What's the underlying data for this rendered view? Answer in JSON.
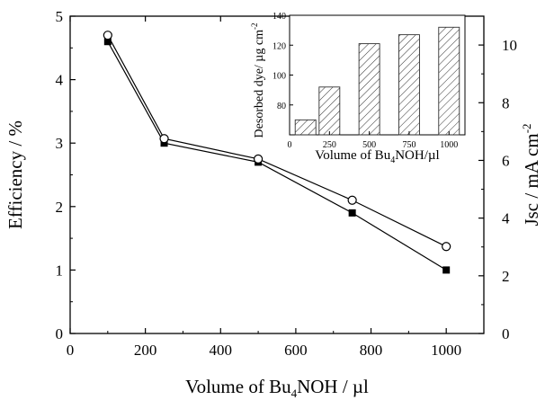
{
  "chart_data": [
    {
      "type": "line",
      "title": "",
      "xlabel": "Volume of Bu4NOH / µl",
      "xlabel_parts": {
        "pre": "Volume of Bu",
        "sub": "4",
        "post": "NOH / µl"
      },
      "ylabel_left": "Efficiency / %",
      "ylabel_right_parts": {
        "pre": "Jsc / mA cm",
        "sup": "-2"
      },
      "xlim": [
        0,
        1100
      ],
      "ylim_left": [
        0,
        5
      ],
      "ylim_right": [
        0,
        11
      ],
      "x_ticks": [
        "0",
        "200",
        "400",
        "600",
        "800",
        "1000"
      ],
      "y_left_ticks": [
        "0",
        "1",
        "2",
        "3",
        "4",
        "5"
      ],
      "y_right_ticks": [
        "0",
        "2",
        "4",
        "6",
        "8",
        "10"
      ],
      "x": [
        100,
        250,
        500,
        750,
        1000
      ],
      "series": [
        {
          "marker": "filled-square",
          "axis": "left",
          "values": [
            4.6,
            3.0,
            2.7,
            1.9,
            1.0
          ]
        },
        {
          "marker": "open-circle",
          "axis": "left",
          "values": [
            4.7,
            3.07,
            2.75,
            2.1,
            1.37
          ]
        }
      ]
    },
    {
      "type": "bar",
      "inset": true,
      "title": "",
      "xlabel_parts": {
        "pre": "Volume of Bu",
        "sub": "4",
        "post": "NOH/µl"
      },
      "ylabel_parts": {
        "pre": "Desorbed dye/ µg cm",
        "sup": "-2"
      },
      "categories": [
        100,
        250,
        500,
        750,
        1000
      ],
      "values": [
        70,
        92,
        121,
        127,
        132
      ],
      "xlim": [
        0,
        1100
      ],
      "ylim": [
        60,
        140
      ],
      "x_ticks": [
        "0",
        "250",
        "500",
        "750",
        "1000"
      ],
      "y_ticks": [
        "80",
        "100",
        "120",
        "140"
      ],
      "bar_fill": "hatched",
      "color": "#000000"
    }
  ]
}
